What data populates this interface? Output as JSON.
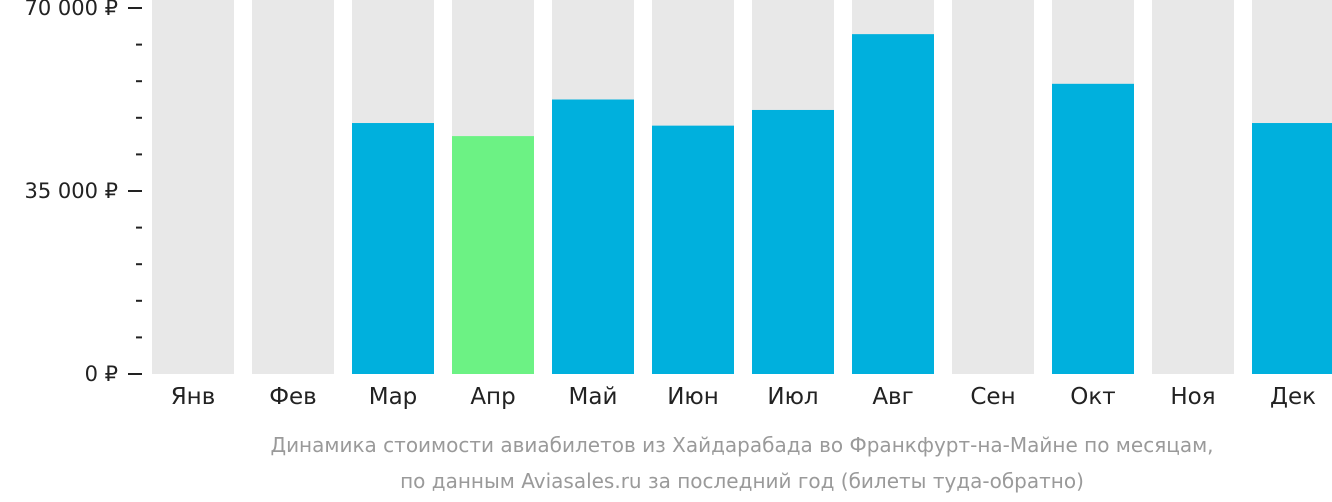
{
  "chart_data": {
    "type": "bar",
    "categories": [
      "Янв",
      "Фев",
      "Мар",
      "Апр",
      "Май",
      "Июн",
      "Июл",
      "Авг",
      "Сен",
      "Окт",
      "Ноя",
      "Дек"
    ],
    "values": [
      null,
      null,
      48000,
      45500,
      52500,
      47500,
      50500,
      65000,
      null,
      55500,
      null,
      48000
    ],
    "highlight_index": 3,
    "ylim": [
      0,
      70000
    ],
    "yticks": [
      {
        "value": 0,
        "label": "0 ₽"
      },
      {
        "value": 35000,
        "label": "35 000 ₽"
      },
      {
        "value": 70000,
        "label": "70 000 ₽"
      }
    ],
    "minor_tick_step": 7000,
    "caption_lines": [
      "Динамика стоимости авиабилетов из Хайдарабада во Франкфурт-на-Майне по месяцам,",
      "по данным Aviasales.ru за последний год (билеты туда-обратно)"
    ],
    "colors": {
      "bar": "#00b0dd",
      "highlight": "#6cf284",
      "background_bar": "#e8e8e8",
      "axis": "#222222",
      "caption": "#9a9a9a"
    }
  }
}
